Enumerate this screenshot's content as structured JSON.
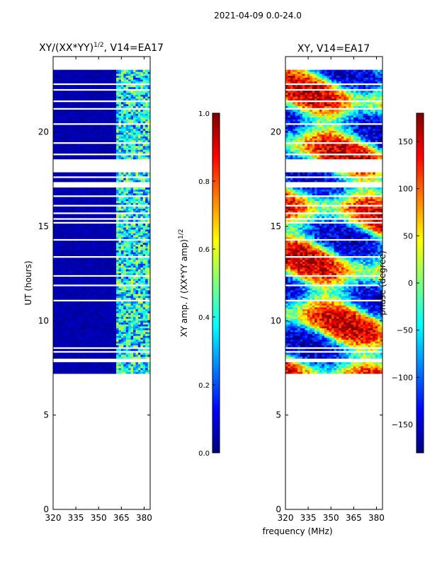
{
  "figure_title": "2021-04-09 0.0-24.0",
  "shared_xlabel": "frequency (MHz)",
  "chart_data": [
    {
      "type": "heatmap",
      "title_main": "XY/(XX*YY)",
      "title_sup": "1/2",
      "title_tail": ", V14=EA17",
      "ylabel": "UT (hours)",
      "xlim": [
        320,
        384
      ],
      "ylim": [
        0,
        24
      ],
      "x_ticks": [
        320,
        335,
        350,
        365,
        380
      ],
      "y_ticks": [
        0,
        5,
        10,
        15,
        20
      ],
      "data_ut_range": [
        7.2,
        23.3
      ],
      "missing_ut_bands": [
        [
          7.85,
          8.05
        ],
        [
          8.3,
          8.4
        ],
        [
          8.55,
          8.65
        ],
        [
          11.0,
          11.1
        ],
        [
          11.8,
          11.9
        ],
        [
          12.3,
          12.4
        ],
        [
          13.3,
          13.4
        ],
        [
          14.2,
          14.3
        ],
        [
          15.1,
          15.2
        ],
        [
          15.35,
          15.5
        ],
        [
          15.7,
          15.8
        ],
        [
          16.05,
          16.15
        ],
        [
          16.6,
          16.7
        ],
        [
          17.1,
          17.4
        ],
        [
          17.6,
          17.7
        ],
        [
          17.9,
          18.6
        ],
        [
          18.8,
          18.9
        ],
        [
          19.35,
          19.5
        ],
        [
          20.4,
          20.5
        ],
        [
          21.2,
          21.3
        ],
        [
          21.6,
          21.7
        ],
        [
          22.2,
          22.3
        ],
        [
          22.5,
          22.6
        ]
      ],
      "colorscale": "jet",
      "colorbar_label_main": "XY amp. / (XX*YY amp)",
      "colorbar_label_sup": "1/2",
      "colorbar_range": [
        0.0,
        1.0
      ],
      "colorbar_ticks": [
        "0.0",
        "0.2",
        "0.4",
        "0.6",
        "0.8",
        "1.0"
      ]
    },
    {
      "type": "heatmap",
      "title_main": "XY, V14=EA17",
      "ylabel": "",
      "xlim": [
        320,
        384
      ],
      "ylim": [
        0,
        24
      ],
      "x_ticks": [
        320,
        335,
        350,
        365,
        380
      ],
      "y_ticks": [
        0,
        5,
        10,
        15,
        20
      ],
      "data_ut_range": [
        7.2,
        23.3
      ],
      "colorscale": "jet",
      "colorbar_label_main": "phase (degree)",
      "colorbar_range": [
        -180,
        180
      ],
      "colorbar_ticks": [
        "−150",
        "−100",
        "−50",
        "0",
        "50",
        "100",
        "150"
      ],
      "colorbar_tick_values": [
        -150,
        -100,
        -50,
        0,
        50,
        100,
        150
      ]
    }
  ]
}
